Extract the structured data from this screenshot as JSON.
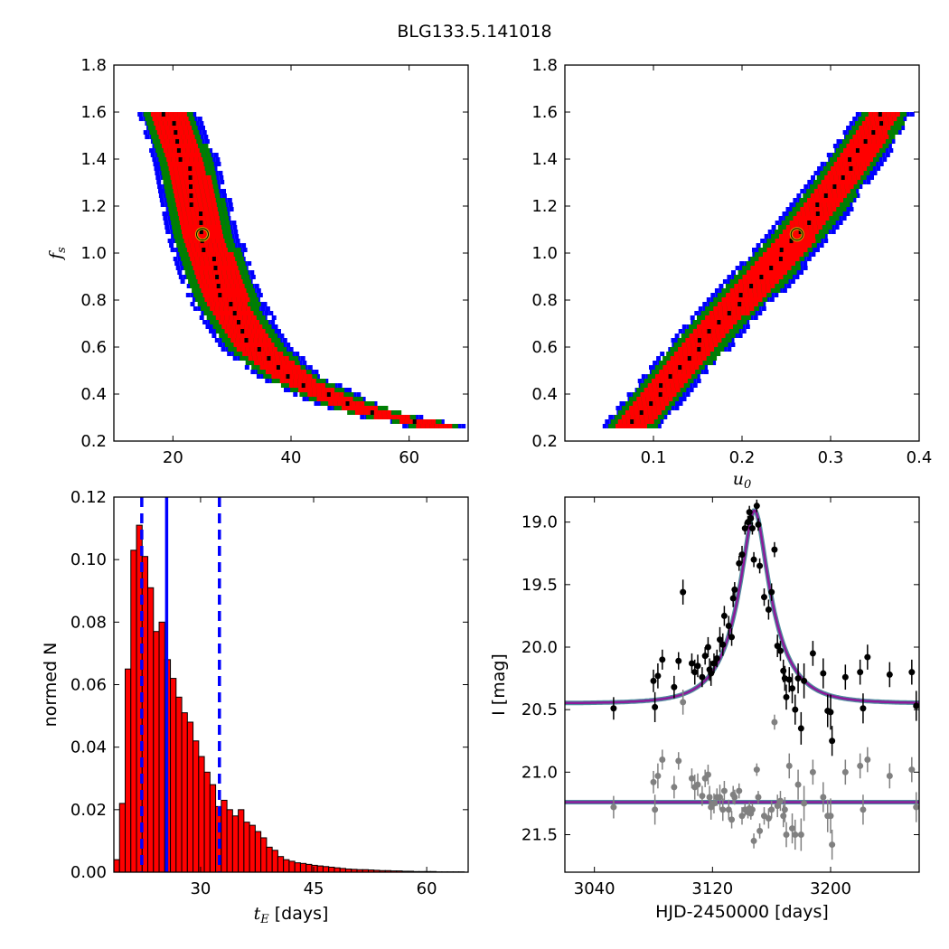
{
  "title": "BLG133.5.141018",
  "colors": {
    "red": "#ff0000",
    "green": "#008000",
    "blue": "#0000ff",
    "black": "#000000",
    "marker_edge": "#c8b400",
    "model_line": "#8b1a9a",
    "model_underlay": "#4f8f9f",
    "gray": "#808080"
  },
  "chart_data": [
    {
      "type": "heatmap",
      "xlabel": "",
      "ylabel": "f_s",
      "xlim": [
        10,
        70
      ],
      "ylim": [
        0.2,
        1.8
      ],
      "xticks": [
        "20",
        "40",
        "60"
      ],
      "yticks": [
        "0.2",
        "0.4",
        "0.6",
        "0.8",
        "1.0",
        "1.2",
        "1.4",
        "1.6",
        "1.8"
      ],
      "ridge": [
        [
          19,
          1.6
        ],
        [
          22,
          1.4
        ],
        [
          25,
          1.08
        ],
        [
          29,
          0.8
        ],
        [
          34,
          0.6
        ],
        [
          40,
          0.48
        ],
        [
          48,
          0.38
        ],
        [
          55,
          0.32
        ],
        [
          64,
          0.28
        ]
      ],
      "best_fit_marker": [
        25,
        1.08
      ],
      "contour_levels": [
        "black",
        "red",
        "green",
        "blue"
      ]
    },
    {
      "type": "heatmap",
      "xlabel": "u_0",
      "ylabel": "",
      "xlim": [
        0.0,
        0.4
      ],
      "ylim": [
        0.2,
        1.8
      ],
      "xticks": [
        "0.1",
        "0.2",
        "0.3",
        "0.4"
      ],
      "yticks": [
        "0.2",
        "0.4",
        "0.6",
        "0.8",
        "1.0",
        "1.2",
        "1.4",
        "1.6",
        "1.8"
      ],
      "ridge": [
        [
          0.075,
          0.28
        ],
        [
          0.12,
          0.48
        ],
        [
          0.17,
          0.7
        ],
        [
          0.22,
          0.9
        ],
        [
          0.262,
          1.08
        ],
        [
          0.31,
          1.32
        ],
        [
          0.36,
          1.6
        ]
      ],
      "best_fit_marker": [
        0.262,
        1.08
      ],
      "contour_levels": [
        "black",
        "red",
        "green",
        "blue"
      ]
    },
    {
      "type": "bar",
      "xlabel": "t_E [days]",
      "ylabel": "normed N",
      "xlim": [
        18.5,
        65.5
      ],
      "ylim": [
        0,
        0.12
      ],
      "xticks": [
        "30",
        "45",
        "60"
      ],
      "yticks": [
        "0.00",
        "0.02",
        "0.04",
        "0.06",
        "0.08",
        "0.10",
        "0.12"
      ],
      "bin_width": 0.75,
      "bin_start": 18.5,
      "values": [
        0.004,
        0.022,
        0.065,
        0.103,
        0.111,
        0.101,
        0.091,
        0.077,
        0.08,
        0.068,
        0.062,
        0.056,
        0.051,
        0.048,
        0.042,
        0.037,
        0.032,
        0.028,
        0.021,
        0.023,
        0.02,
        0.018,
        0.02,
        0.016,
        0.015,
        0.013,
        0.011,
        0.008,
        0.007,
        0.005,
        0.004,
        0.0035,
        0.003,
        0.0028,
        0.0025,
        0.0022,
        0.002,
        0.0018,
        0.0016,
        0.0014,
        0.0012,
        0.001,
        0.0009,
        0.0008,
        0.0008,
        0.0007,
        0.0006,
        0.0005,
        0.0005,
        0.0004,
        0.0004,
        0.0003,
        0.0003,
        0.0002,
        0.0002,
        0.0002,
        0.0002,
        0.0001,
        0.0001,
        0.0001,
        0.0001,
        0.0001
      ],
      "median_line": 25.5,
      "interval_lines": [
        22.2,
        32.5
      ]
    },
    {
      "type": "scatter",
      "xlabel": "HJD-2450000 [days]",
      "ylabel": "I [mag]",
      "xlim": [
        3020,
        3260
      ],
      "ylim": [
        21.8,
        18.8
      ],
      "xticks": [
        "3040",
        "3120",
        "3200"
      ],
      "yticks": [
        "19.0",
        "19.5",
        "20.0",
        "20.5",
        "21.0",
        "21.5"
      ],
      "model": {
        "t0": 3148.5,
        "tE": 25.1,
        "u0": 0.262,
        "fs": 1.08,
        "baseline": 20.45
      },
      "residual_baseline": 21.24,
      "series": [
        {
          "color": "black",
          "points": [
            [
              3053,
              20.49,
              0.09
            ],
            [
              3080,
              20.27,
              0.09
            ],
            [
              3081,
              20.48,
              0.12
            ],
            [
              3083,
              20.23,
              0.1
            ],
            [
              3086,
              20.1,
              0.08
            ],
            [
              3094,
              20.32,
              0.09
            ],
            [
              3097,
              20.11,
              0.07
            ],
            [
              3100,
              19.56,
              0.1
            ],
            [
              3106,
              20.13,
              0.08
            ],
            [
              3108,
              20.2,
              0.1
            ],
            [
              3110,
              20.15,
              0.09
            ],
            [
              3113,
              20.24,
              0.08
            ],
            [
              3115,
              20.07,
              0.07
            ],
            [
              3117,
              20.0,
              0.08
            ],
            [
              3118,
              20.18,
              0.09
            ],
            [
              3119,
              20.21,
              0.1
            ],
            [
              3121,
              20.13,
              0.08
            ],
            [
              3123,
              20.09,
              0.07
            ],
            [
              3125,
              19.94,
              0.1
            ],
            [
              3127,
              19.98,
              0.09
            ],
            [
              3128,
              19.75,
              0.08
            ],
            [
              3131,
              19.83,
              0.08
            ],
            [
              3133,
              19.92,
              0.07
            ],
            [
              3134,
              19.61,
              0.07
            ],
            [
              3135,
              19.54,
              0.06
            ],
            [
              3138,
              19.33,
              0.06
            ],
            [
              3140,
              19.26,
              0.07
            ],
            [
              3142,
              19.05,
              0.05
            ],
            [
              3144,
              19.0,
              0.05
            ],
            [
              3145,
              18.92,
              0.05
            ],
            [
              3146,
              18.97,
              0.05
            ],
            [
              3147,
              19.05,
              0.05
            ],
            [
              3148,
              19.3,
              0.06
            ],
            [
              3150,
              18.87,
              0.05
            ],
            [
              3151,
              19.02,
              0.05
            ],
            [
              3152,
              19.35,
              0.06
            ],
            [
              3155,
              19.6,
              0.07
            ],
            [
              3158,
              19.7,
              0.08
            ],
            [
              3160,
              19.56,
              0.07
            ],
            [
              3162,
              19.22,
              0.06
            ],
            [
              3164,
              19.99,
              0.09
            ],
            [
              3166,
              20.03,
              0.08
            ],
            [
              3168,
              20.19,
              0.09
            ],
            [
              3169,
              20.25,
              0.1
            ],
            [
              3170,
              20.4,
              0.1
            ],
            [
              3172,
              20.26,
              0.1
            ],
            [
              3174,
              20.33,
              0.12
            ],
            [
              3176,
              20.5,
              0.12
            ],
            [
              3178,
              20.25,
              0.12
            ],
            [
              3180,
              20.65,
              0.13
            ],
            [
              3182,
              20.27,
              0.14
            ],
            [
              3188,
              20.05,
              0.1
            ],
            [
              3195,
              20.21,
              0.12
            ],
            [
              3198,
              20.51,
              0.13
            ],
            [
              3200,
              20.52,
              0.14
            ],
            [
              3201,
              20.75,
              0.12
            ],
            [
              3210,
              20.24,
              0.1
            ],
            [
              3220,
              20.2,
              0.1
            ],
            [
              3222,
              20.49,
              0.12
            ],
            [
              3225,
              20.08,
              0.1
            ],
            [
              3240,
              20.22,
              0.1
            ],
            [
              3255,
              20.2,
              0.1
            ],
            [
              3258,
              20.47,
              0.12
            ]
          ]
        },
        {
          "color": "gray",
          "points": [
            [
              3053,
              21.28,
              0.09
            ],
            [
              3080,
              21.08,
              0.09
            ],
            [
              3081,
              21.3,
              0.12
            ],
            [
              3083,
              21.03,
              0.1
            ],
            [
              3086,
              20.9,
              0.08
            ],
            [
              3094,
              21.12,
              0.09
            ],
            [
              3097,
              20.91,
              0.07
            ],
            [
              3100,
              20.44,
              0.1
            ],
            [
              3106,
              21.05,
              0.08
            ],
            [
              3108,
              21.12,
              0.1
            ],
            [
              3110,
              21.1,
              0.09
            ],
            [
              3113,
              21.19,
              0.08
            ],
            [
              3115,
              21.05,
              0.07
            ],
            [
              3117,
              21.02,
              0.08
            ],
            [
              3118,
              21.2,
              0.09
            ],
            [
              3119,
              21.28,
              0.1
            ],
            [
              3121,
              21.25,
              0.08
            ],
            [
              3123,
              21.2,
              0.07
            ],
            [
              3125,
              21.2,
              0.1
            ],
            [
              3127,
              21.3,
              0.09
            ],
            [
              3128,
              21.15,
              0.08
            ],
            [
              3131,
              21.3,
              0.08
            ],
            [
              3133,
              21.38,
              0.07
            ],
            [
              3134,
              21.18,
              0.07
            ],
            [
              3135,
              21.2,
              0.06
            ],
            [
              3138,
              21.15,
              0.06
            ],
            [
              3140,
              21.35,
              0.07
            ],
            [
              3142,
              21.3,
              0.05
            ],
            [
              3144,
              21.32,
              0.05
            ],
            [
              3145,
              21.29,
              0.05
            ],
            [
              3146,
              21.33,
              0.05
            ],
            [
              3147,
              21.3,
              0.05
            ],
            [
              3148,
              21.55,
              0.06
            ],
            [
              3150,
              20.98,
              0.05
            ],
            [
              3151,
              21.2,
              0.05
            ],
            [
              3152,
              21.47,
              0.06
            ],
            [
              3155,
              21.35,
              0.07
            ],
            [
              3158,
              21.37,
              0.08
            ],
            [
              3160,
              21.3,
              0.07
            ],
            [
              3162,
              20.6,
              0.06
            ],
            [
              3164,
              21.27,
              0.09
            ],
            [
              3166,
              21.23,
              0.08
            ],
            [
              3168,
              21.35,
              0.09
            ],
            [
              3169,
              21.3,
              0.1
            ],
            [
              3170,
              21.5,
              0.1
            ],
            [
              3172,
              20.95,
              0.1
            ],
            [
              3174,
              21.45,
              0.12
            ],
            [
              3176,
              21.5,
              0.12
            ],
            [
              3178,
              21.1,
              0.12
            ],
            [
              3180,
              21.5,
              0.13
            ],
            [
              3182,
              21.25,
              0.14
            ],
            [
              3188,
              21.0,
              0.1
            ],
            [
              3195,
              21.2,
              0.12
            ],
            [
              3198,
              21.35,
              0.13
            ],
            [
              3200,
              21.35,
              0.14
            ],
            [
              3201,
              21.58,
              0.12
            ],
            [
              3210,
              21.0,
              0.1
            ],
            [
              3220,
              20.95,
              0.1
            ],
            [
              3222,
              21.3,
              0.12
            ],
            [
              3225,
              20.9,
              0.1
            ],
            [
              3240,
              21.03,
              0.1
            ],
            [
              3255,
              20.98,
              0.1
            ],
            [
              3258,
              21.28,
              0.12
            ]
          ]
        }
      ]
    }
  ]
}
